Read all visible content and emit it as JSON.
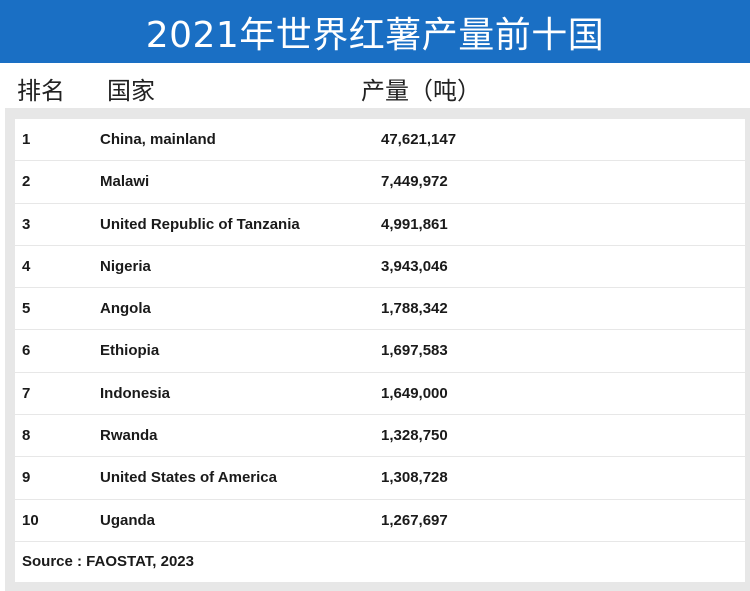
{
  "title": "2021年世界红薯产量前十国",
  "header": {
    "rank": "排名",
    "country": "国家",
    "production": "产量（吨）"
  },
  "rows": [
    {
      "rank": "1",
      "country": "China, mainland",
      "production": "47,621,147"
    },
    {
      "rank": "2",
      "country": "Malawi",
      "production": "7,449,972"
    },
    {
      "rank": "3",
      "country": "United Republic of Tanzania",
      "production": "4,991,861"
    },
    {
      "rank": "4",
      "country": "Nigeria",
      "production": "3,943,046"
    },
    {
      "rank": "5",
      "country": "Angola",
      "production": "1,788,342"
    },
    {
      "rank": "6",
      "country": "Ethiopia",
      "production": "1,697,583"
    },
    {
      "rank": "7",
      "country": "Indonesia",
      "production": "1,649,000"
    },
    {
      "rank": "8",
      "country": "Rwanda",
      "production": "1,328,750"
    },
    {
      "rank": "9",
      "country": "United States of America",
      "production": "1,308,728"
    },
    {
      "rank": "10",
      "country": "Uganda",
      "production": "1,267,697"
    }
  ],
  "source": "Source : FAOSTAT, 2023",
  "colors": {
    "title_bar": "#1a6fc4",
    "table_background": "#e7e7e7"
  }
}
